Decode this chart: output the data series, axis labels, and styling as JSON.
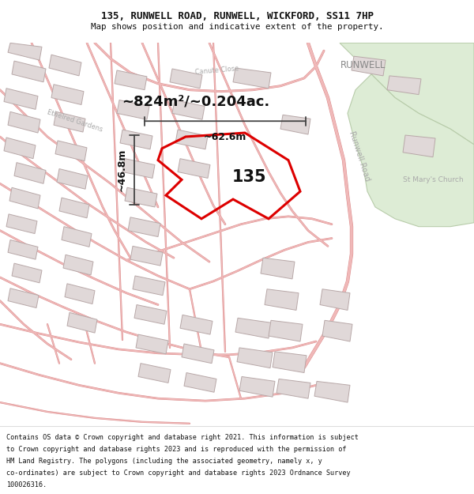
{
  "title_line1": "135, RUNWELL ROAD, RUNWELL, WICKFORD, SS11 7HP",
  "title_line2": "Map shows position and indicative extent of the property.",
  "footer_lines": [
    "Contains OS data © Crown copyright and database right 2021. This information is subject",
    "to Crown copyright and database rights 2023 and is reproduced with the permission of",
    "HM Land Registry. The polygons (including the associated geometry, namely x, y",
    "co-ordinates) are subject to Crown copyright and database rights 2023 Ordnance Survey",
    "100026316."
  ],
  "area_label": "~824m²/~0.204ac.",
  "property_number": "135",
  "width_label": "~62.6m",
  "height_label": "~46.8m",
  "map_bg": "#f9f7f7",
  "road_color": "#f0b8b8",
  "road_stroke": "#d88888",
  "plot_color": "#dd0000",
  "building_fill": "#e0d8d8",
  "building_stroke": "#b8a8a8",
  "green_fill": "#ddecd5",
  "green_stroke": "#b8ccaa",
  "road_label_color": "#aaaaaa",
  "place_label_color": "#888888",
  "text_color": "#111111",
  "dim_color": "#444444"
}
